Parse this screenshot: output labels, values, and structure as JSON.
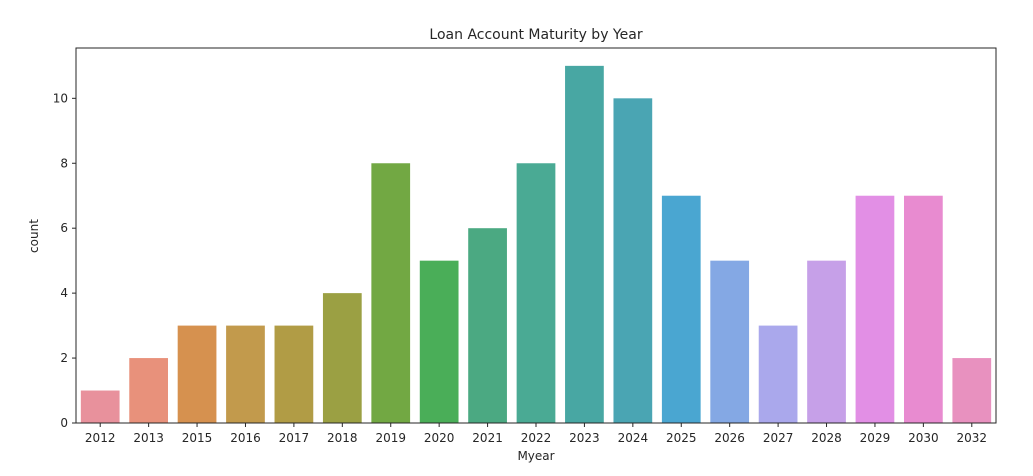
{
  "chart_data": {
    "type": "bar",
    "title": "Loan Account Maturity by Year",
    "xlabel": "Myear",
    "ylabel": "count",
    "categories": [
      "2012",
      "2013",
      "2015",
      "2016",
      "2017",
      "2018",
      "2019",
      "2020",
      "2021",
      "2022",
      "2023",
      "2024",
      "2025",
      "2026",
      "2027",
      "2028",
      "2029",
      "2030",
      "2032"
    ],
    "values": [
      1,
      2,
      3,
      3,
      3,
      4,
      8,
      5,
      6,
      8,
      11,
      10,
      7,
      5,
      3,
      5,
      7,
      7,
      2
    ],
    "colors": [
      "#e8919c",
      "#e8917b",
      "#d6914f",
      "#c29a4c",
      "#b19c45",
      "#9ba043",
      "#72a843",
      "#4aae58",
      "#4ba982",
      "#4aaa94",
      "#48a7a3",
      "#4aa5b3",
      "#4aa6d1",
      "#84a8e4",
      "#aaa8ec",
      "#c6a0e8",
      "#e28fe5",
      "#e88bd0",
      "#e891bf"
    ],
    "yticks": [
      0,
      2,
      4,
      6,
      8,
      10
    ],
    "ylim": [
      0,
      11.55
    ],
    "grid": false
  }
}
